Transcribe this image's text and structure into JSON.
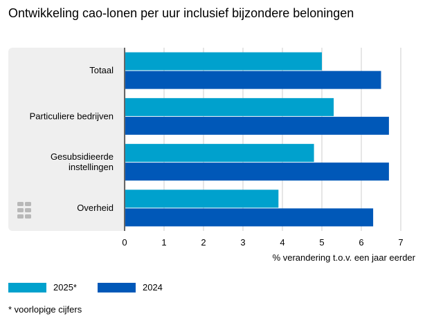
{
  "title": "Ontwikkeling cao-lonen per uur inclusief bijzondere beloningen",
  "footnote": "* voorlopige cijfers",
  "colors": {
    "series_2025": "#00a1cd",
    "series_2024": "#0058b8",
    "panel_bg": "#efefef",
    "grid": "#cccccc",
    "axis": "#666666"
  },
  "chart_data": {
    "type": "bar",
    "orientation": "horizontal",
    "categories": [
      "Totaal",
      "Particuliere bedrijven",
      "Gesubsidieerde instellingen",
      "Overheid"
    ],
    "category_lines": [
      [
        "Totaal"
      ],
      [
        "Particuliere bedrijven"
      ],
      [
        "Gesubsidieerde",
        "instellingen"
      ],
      [
        "Overheid"
      ]
    ],
    "series": [
      {
        "name": "2025*",
        "values": [
          5.0,
          5.3,
          4.8,
          3.9
        ]
      },
      {
        "name": "2024",
        "values": [
          6.5,
          6.7,
          6.7,
          6.3
        ]
      }
    ],
    "xlim": [
      0,
      7
    ],
    "xticks": [
      0,
      1,
      2,
      3,
      4,
      5,
      6,
      7
    ],
    "xlabel": "% verandering t.o.v. een jaar eerder",
    "grid": true,
    "legend": "bottom-left"
  }
}
